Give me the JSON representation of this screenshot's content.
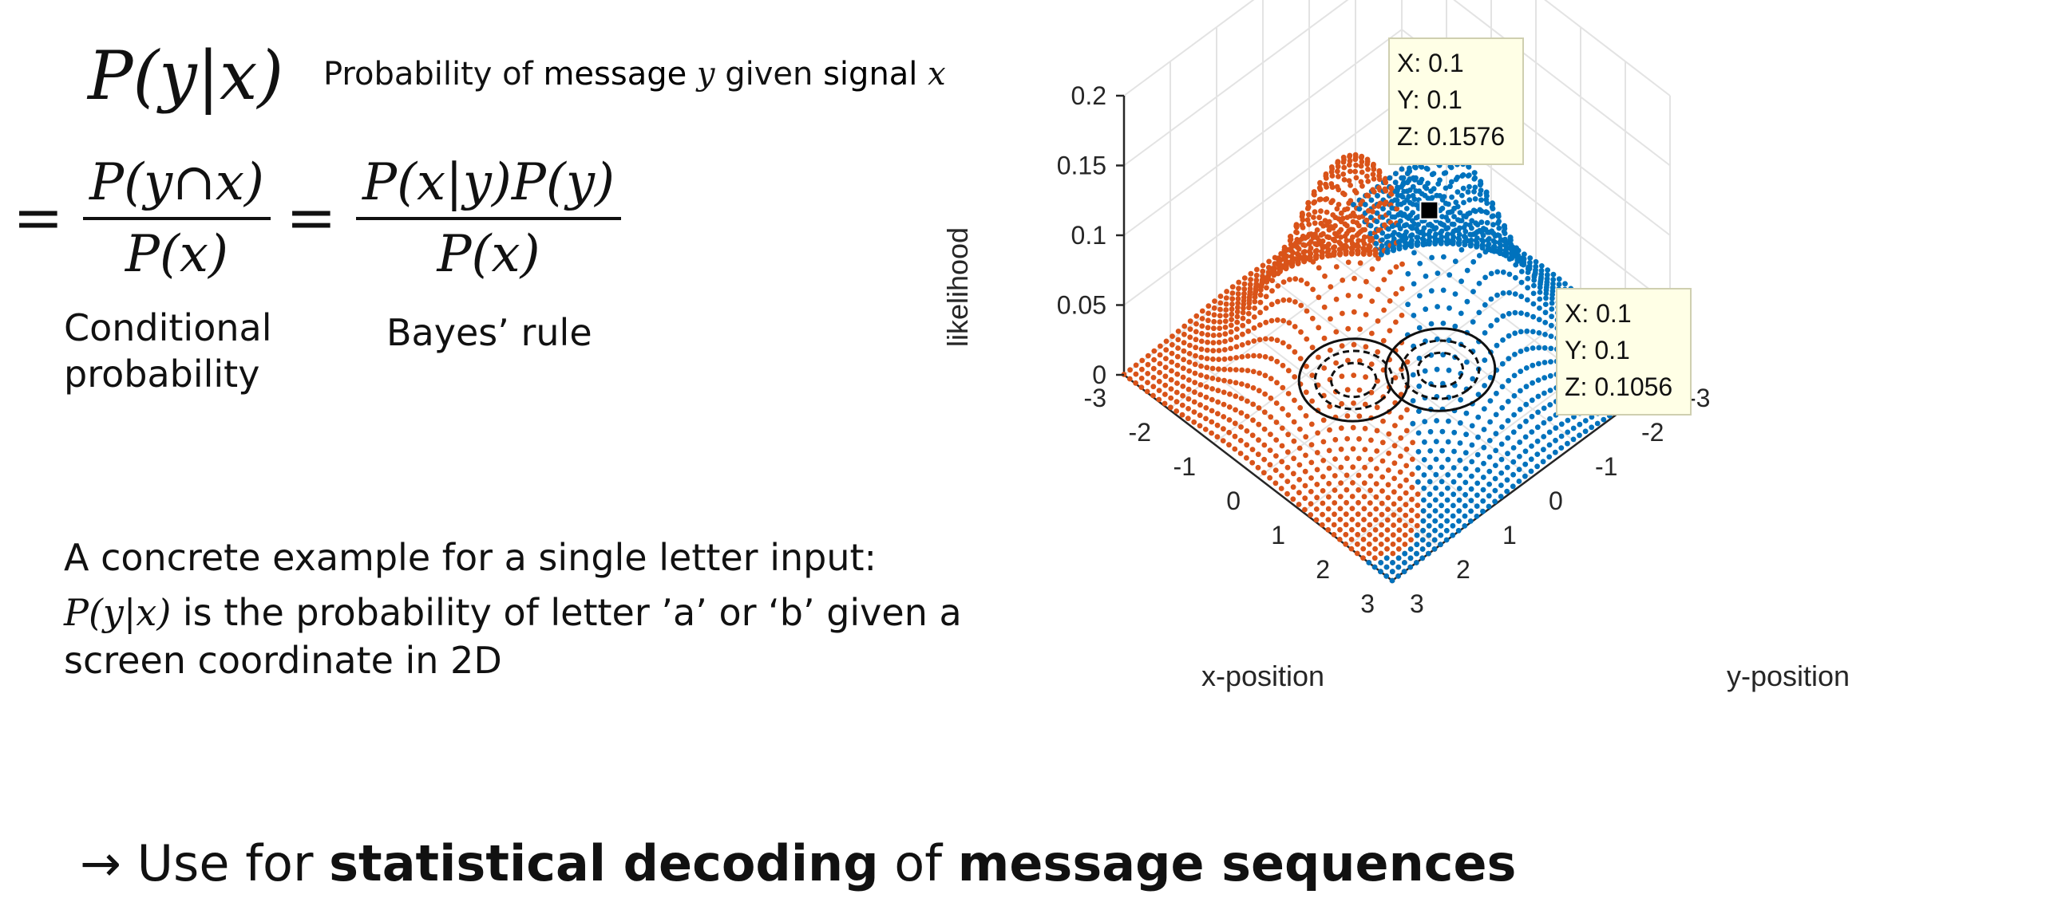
{
  "formula": {
    "lhs": "P(y|x)",
    "desc_prefix": "Probability of ",
    "desc_msg": "message",
    "desc_y": " y",
    "desc_mid": "  given ",
    "desc_signal": "signal",
    "desc_x": " x",
    "eq": "=",
    "frac1_num": "P(y∩x)",
    "frac1_den": "P(x)",
    "frac2_num": "P(x|y)P(y)",
    "frac2_den": "P(x)",
    "cond_label_1": "Conditional",
    "cond_label_2": "probability",
    "bayes_label": "Bayes’ rule"
  },
  "example": {
    "intro": "A concrete example for a single letter input:",
    "expr": "P(y|x)",
    "text_a": " is the probability of ",
    "text_letters": "letter ’a’ or ‘b’",
    "text_b": " given a ",
    "text_coord": "screen coordinate in 2D"
  },
  "conclusion": {
    "arrow": "→",
    "pre": " Use for ",
    "bold1": "statistical decoding",
    "mid": " of ",
    "bold2": "message sequences"
  },
  "chart_data": {
    "type": "surface-scatter-3d",
    "zlabel": "likelihood",
    "xlabel": "x-position",
    "ylabel": "y-position",
    "zticks": [
      "0",
      "0.05",
      "0.1",
      "0.15",
      "0.2"
    ],
    "xticks": [
      "-3",
      "-2",
      "-1",
      "0",
      "1",
      "2",
      "3"
    ],
    "yticks": [
      "3",
      "2",
      "1",
      "0",
      "-1",
      "-2",
      "-3"
    ],
    "xlim": [
      -3,
      3
    ],
    "ylim": [
      -3,
      3
    ],
    "zlim": [
      0,
      0.2
    ],
    "series": [
      {
        "color": "#d95319",
        "peak_z": 0.1576
      },
      {
        "color": "#0072bd",
        "peak_z": 0.1576
      }
    ],
    "datatips": [
      {
        "x_label": "X: 0.1",
        "y_label": "Y: 0.1",
        "z_label": "Z: 0.1576"
      },
      {
        "x_label": "X: 0.1",
        "y_label": "Y: 0.1",
        "z_label": "Z: 0.1056"
      }
    ]
  }
}
